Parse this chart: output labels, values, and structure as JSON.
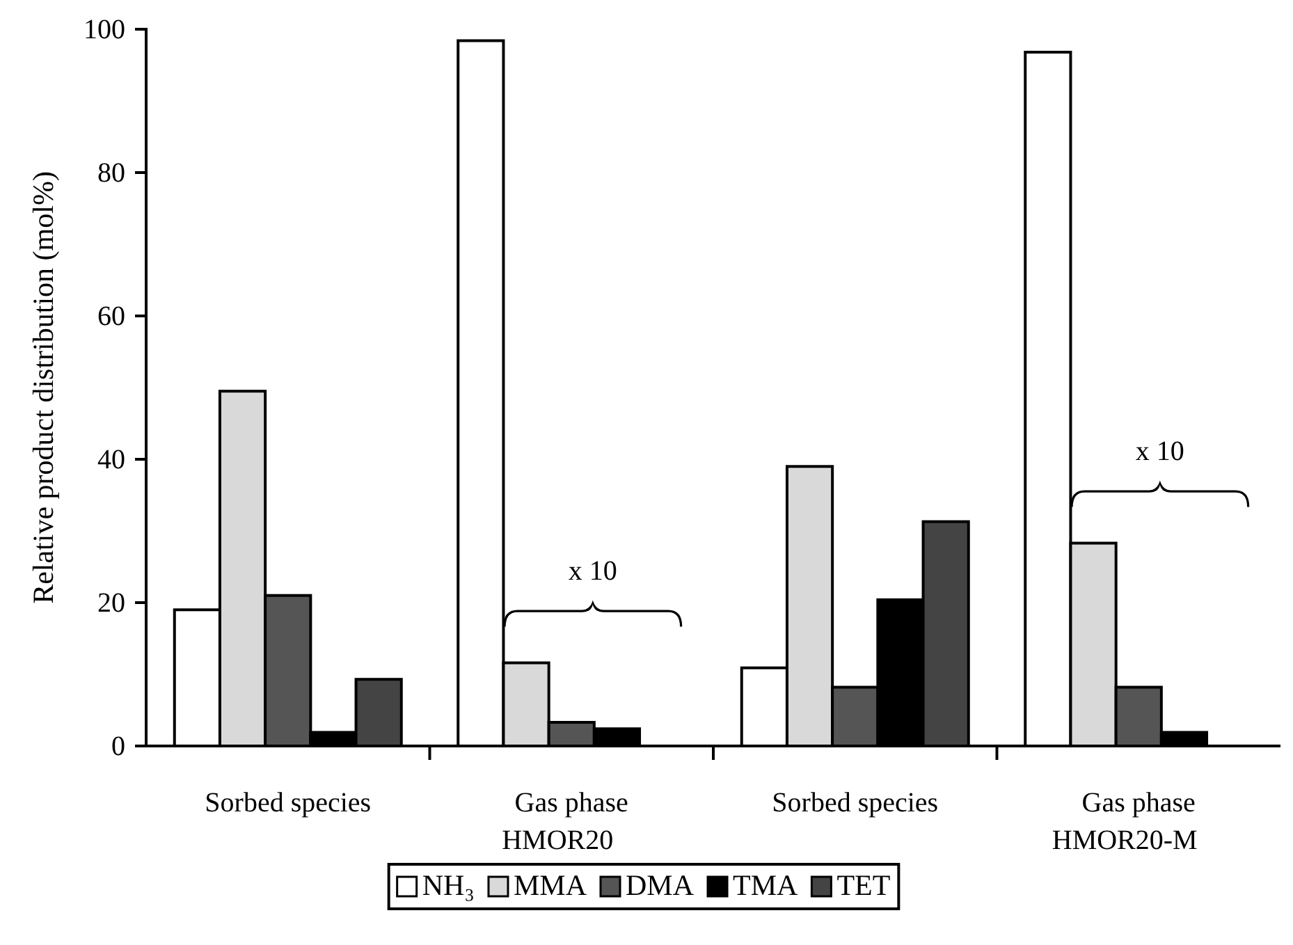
{
  "chart_data": {
    "type": "bar",
    "ylabel": "Relative product distribution (mol%)",
    "categories": [
      "Sorbed species",
      "Gas phase",
      "Sorbed species",
      "Gas phase"
    ],
    "series": [
      {
        "name": "NH₃",
        "color": "#ffffff",
        "values": [
          19,
          98.4,
          10.9,
          96.8
        ]
      },
      {
        "name": "MMA",
        "color": "#d9d9d9",
        "values": [
          49.5,
          11.6,
          39,
          28.3
        ]
      },
      {
        "name": "DMA",
        "color": "#555555",
        "values": [
          21,
          3.3,
          8.2,
          8.2
        ]
      },
      {
        "name": "TMA",
        "color": "#000000",
        "values": [
          1.9,
          2.4,
          20.4,
          1.9
        ]
      },
      {
        "name": "TET",
        "color": "#444444",
        "values": [
          9.3,
          null,
          31.3,
          null
        ]
      }
    ],
    "ylim": [
      0,
      100
    ],
    "yticks": [
      0,
      20,
      40,
      60,
      80,
      100
    ],
    "grid": false,
    "legend": "bottom",
    "annotations": [
      "HMOR20",
      "HMOR20-M",
      "x 10",
      "x 10"
    ]
  }
}
